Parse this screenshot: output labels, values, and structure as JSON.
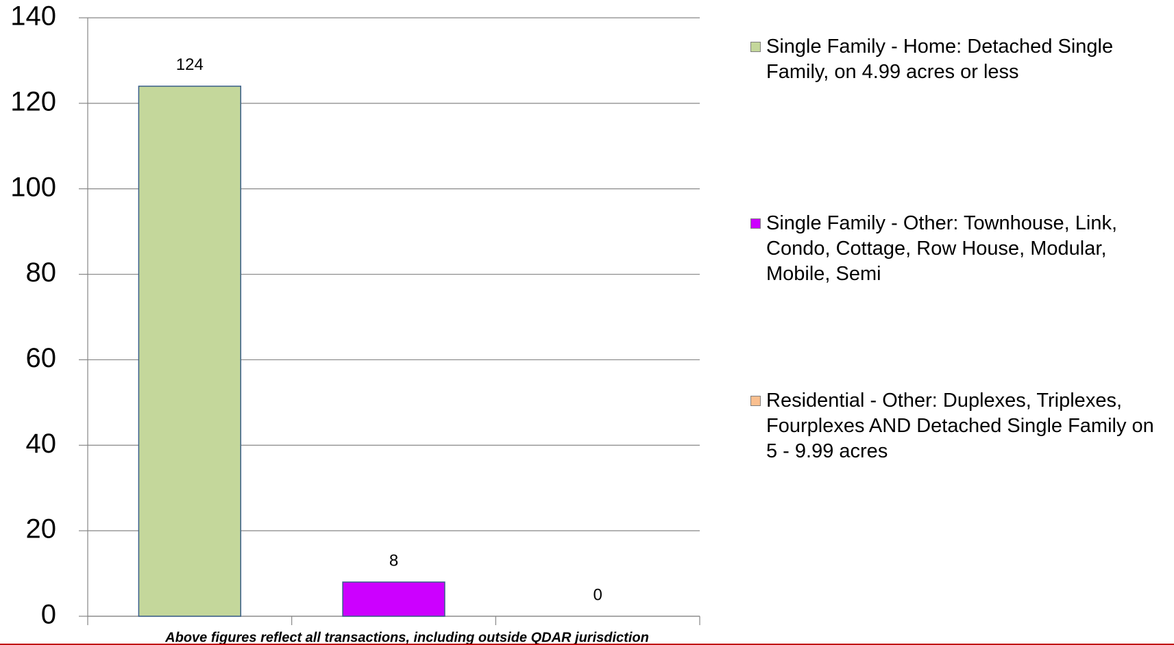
{
  "chart_data": {
    "type": "bar",
    "categories": [
      "Single Family - Home: Detached Single Family, on 4.99 acres or less",
      "Single Family - Other: Townhouse, Link, Condo, Cottage, Row House, Modular, Mobile, Semi",
      "Residential - Other: Duplexes, Triplexes, Fourplexes AND Detached Single Family on 5 - 9.99 acres"
    ],
    "values": [
      124,
      8,
      0
    ],
    "colors": [
      "#c4d79b",
      "#cc00ff",
      "#fabf8f"
    ],
    "x_label": "Above figures reflect all transactions, including outside QDAR jurisdiction",
    "ylim": [
      0,
      140
    ],
    "yticks": [
      0,
      20,
      40,
      60,
      80,
      100,
      120,
      140
    ],
    "grid": true,
    "legend": "right",
    "show_value_labels": true
  }
}
